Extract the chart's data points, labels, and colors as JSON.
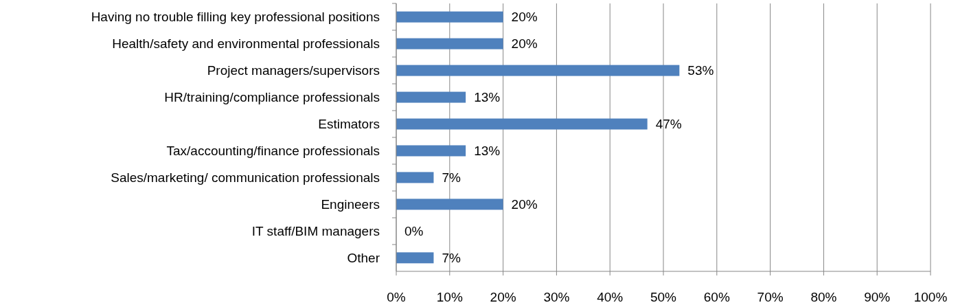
{
  "chart_data": {
    "type": "bar",
    "orientation": "horizontal",
    "categories": [
      "Having no trouble filling key professional positions",
      "Health/safety and environmental professionals",
      "Project managers/supervisors",
      "HR/training/compliance professionals",
      "Estimators",
      "Tax/accounting/finance professionals",
      "Sales/marketing/ communication professionals",
      "Engineers",
      "IT staff/BIM managers",
      "Other"
    ],
    "values": [
      20,
      20,
      53,
      13,
      47,
      13,
      7,
      20,
      0,
      7
    ],
    "value_labels": [
      "20%",
      "20%",
      "53%",
      "13%",
      "47%",
      "13%",
      "7%",
      "20%",
      "0%",
      "7%"
    ],
    "color": "#4f81bd",
    "xlim": [
      0,
      100
    ],
    "xticks": [
      {
        "value": 0,
        "label": "0%"
      },
      {
        "value": 10,
        "label": "10%"
      },
      {
        "value": 20,
        "label": "20%"
      },
      {
        "value": 30,
        "label": "30%"
      },
      {
        "value": 40,
        "label": "40%"
      },
      {
        "value": 50,
        "label": "50%"
      },
      {
        "value": 60,
        "label": "60%"
      },
      {
        "value": 70,
        "label": "70%"
      },
      {
        "value": 80,
        "label": "80%"
      },
      {
        "value": 90,
        "label": "90%"
      },
      {
        "value": 100,
        "label": "100%"
      }
    ],
    "grid": "x"
  }
}
